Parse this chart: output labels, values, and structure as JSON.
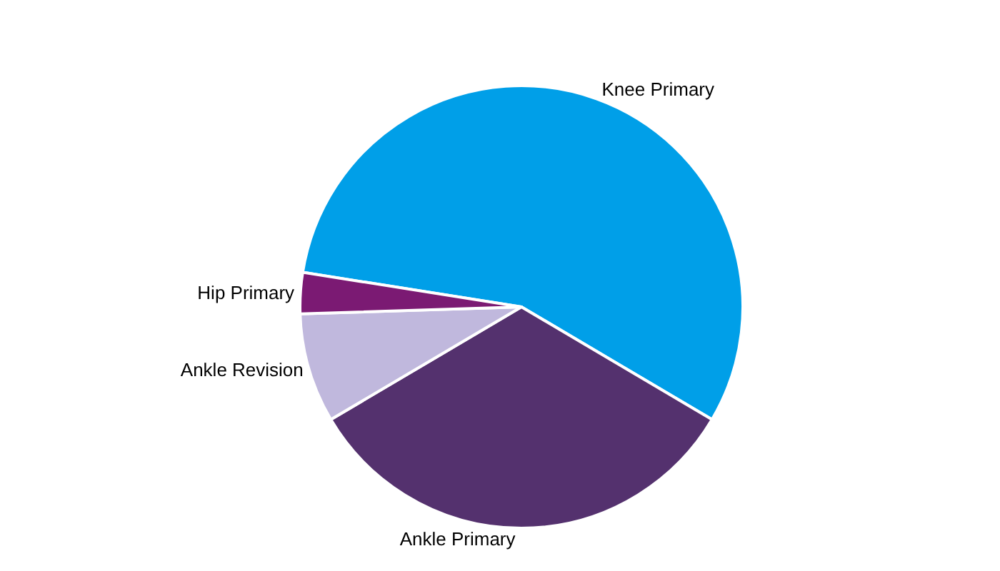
{
  "chart_data": {
    "type": "pie",
    "categories": [
      "Knee Primary",
      "Ankle Primary",
      "Ankle Revision",
      "Hip Primary"
    ],
    "values": [
      56,
      33,
      8,
      3
    ],
    "colors": [
      "#009fe8",
      "#54316e",
      "#c0b8dd",
      "#7b1a73"
    ],
    "legend": false
  }
}
